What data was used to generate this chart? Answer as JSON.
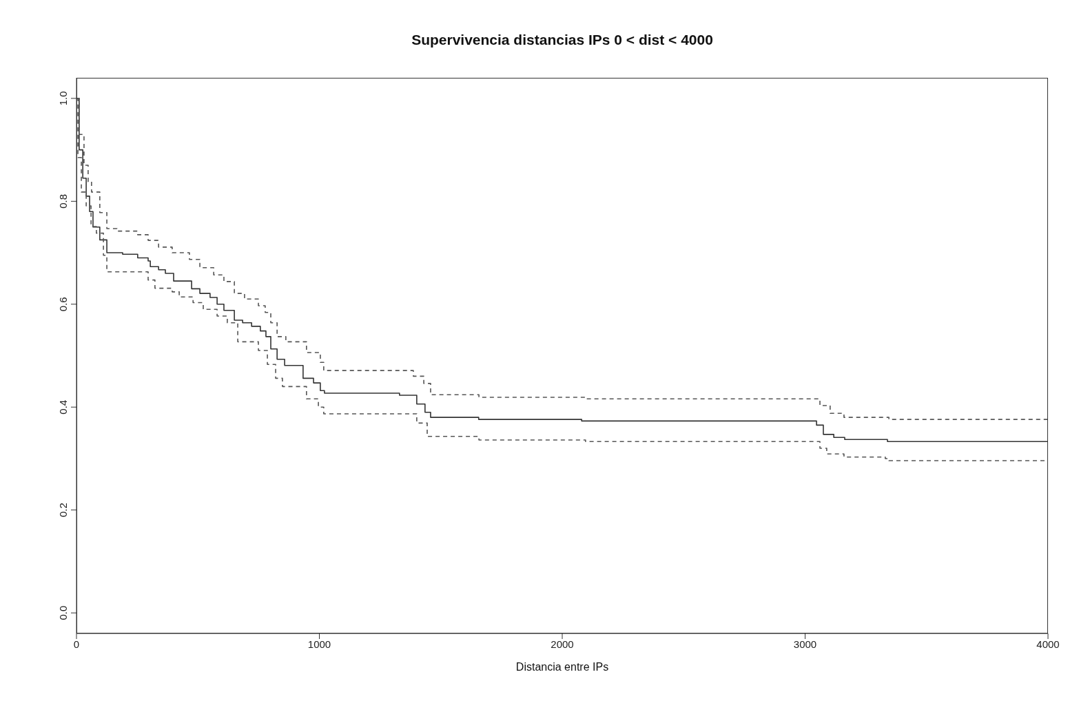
{
  "chart_data": {
    "type": "step",
    "title": "Supervivencia distancias IPs 0 < dist < 4000",
    "xlabel": "Distancia entre IPs",
    "xlim": [
      0,
      4000
    ],
    "xticks": [
      0,
      1000,
      2000,
      3000,
      4000
    ],
    "ylim": [
      -0.04,
      1.04
    ],
    "yticks": [
      {
        "value": 0,
        "label": "0.0"
      },
      {
        "value": 0.2,
        "label": "0.2"
      },
      {
        "value": 0.4,
        "label": "0.4"
      },
      {
        "value": 0.6,
        "label": "0.6"
      },
      {
        "value": 0.8,
        "label": "0.8"
      },
      {
        "value": 1,
        "label": "1.0"
      }
    ],
    "marker": "none",
    "series": [
      {
        "color": "#333333",
        "line_style": "solid",
        "x": [
          0,
          11,
          26,
          40,
          54,
          68,
          96,
          125,
          190,
          252,
          295,
          304,
          338,
          366,
          400,
          474,
          508,
          550,
          579,
          607,
          650,
          684,
          721,
          757,
          780,
          800,
          826,
          857,
          933,
          976,
          1004,
          1021,
          1330,
          1401,
          1435,
          1458,
          1656,
          2080,
          3047,
          3075,
          3118,
          3163,
          3339,
          4000
        ],
        "values": [
          1.0,
          0.9,
          0.845,
          0.81,
          0.78,
          0.75,
          0.725,
          0.7,
          0.697,
          0.69,
          0.684,
          0.673,
          0.667,
          0.66,
          0.645,
          0.63,
          0.621,
          0.613,
          0.6,
          0.588,
          0.569,
          0.564,
          0.557,
          0.548,
          0.537,
          0.513,
          0.493,
          0.481,
          0.456,
          0.447,
          0.432,
          0.427,
          0.423,
          0.406,
          0.39,
          0.38,
          0.376,
          0.373,
          0.365,
          0.347,
          0.341,
          0.337,
          0.333,
          0.333
        ]
      },
      {
        "color": "#555555",
        "line_style": "dashed",
        "x": [
          0,
          11,
          31,
          48,
          62,
          96,
          125,
          167,
          252,
          295,
          338,
          394,
          465,
          508,
          565,
          607,
          650,
          692,
          749,
          777,
          800,
          826,
          862,
          947,
          1004,
          1018,
          1387,
          1430,
          1458,
          1657,
          2096,
          3061,
          3103,
          3160,
          3345,
          4000
        ],
        "values": [
          1.0,
          0.93,
          0.87,
          0.838,
          0.818,
          0.778,
          0.747,
          0.742,
          0.735,
          0.724,
          0.711,
          0.7,
          0.687,
          0.671,
          0.657,
          0.644,
          0.621,
          0.61,
          0.597,
          0.584,
          0.564,
          0.537,
          0.527,
          0.506,
          0.487,
          0.471,
          0.46,
          0.446,
          0.424,
          0.419,
          0.416,
          0.403,
          0.388,
          0.38,
          0.376,
          0.376
        ]
      },
      {
        "color": "#555555",
        "line_style": "dashed",
        "x": [
          0,
          6,
          20,
          40,
          60,
          82,
          111,
          125,
          295,
          323,
          394,
          423,
          480,
          522,
          579,
          621,
          664,
          749,
          786,
          820,
          848,
          947,
          996,
          1018,
          1401,
          1444,
          1657,
          2096,
          3061,
          3089,
          3160,
          3330,
          3345,
          4000
        ],
        "values": [
          1.0,
          0.885,
          0.818,
          0.791,
          0.751,
          0.738,
          0.695,
          0.663,
          0.647,
          0.631,
          0.624,
          0.614,
          0.603,
          0.59,
          0.577,
          0.564,
          0.527,
          0.51,
          0.483,
          0.456,
          0.44,
          0.416,
          0.4,
          0.387,
          0.369,
          0.343,
          0.336,
          0.333,
          0.32,
          0.309,
          0.303,
          0.3,
          0.296,
          0.296
        ]
      }
    ]
  }
}
